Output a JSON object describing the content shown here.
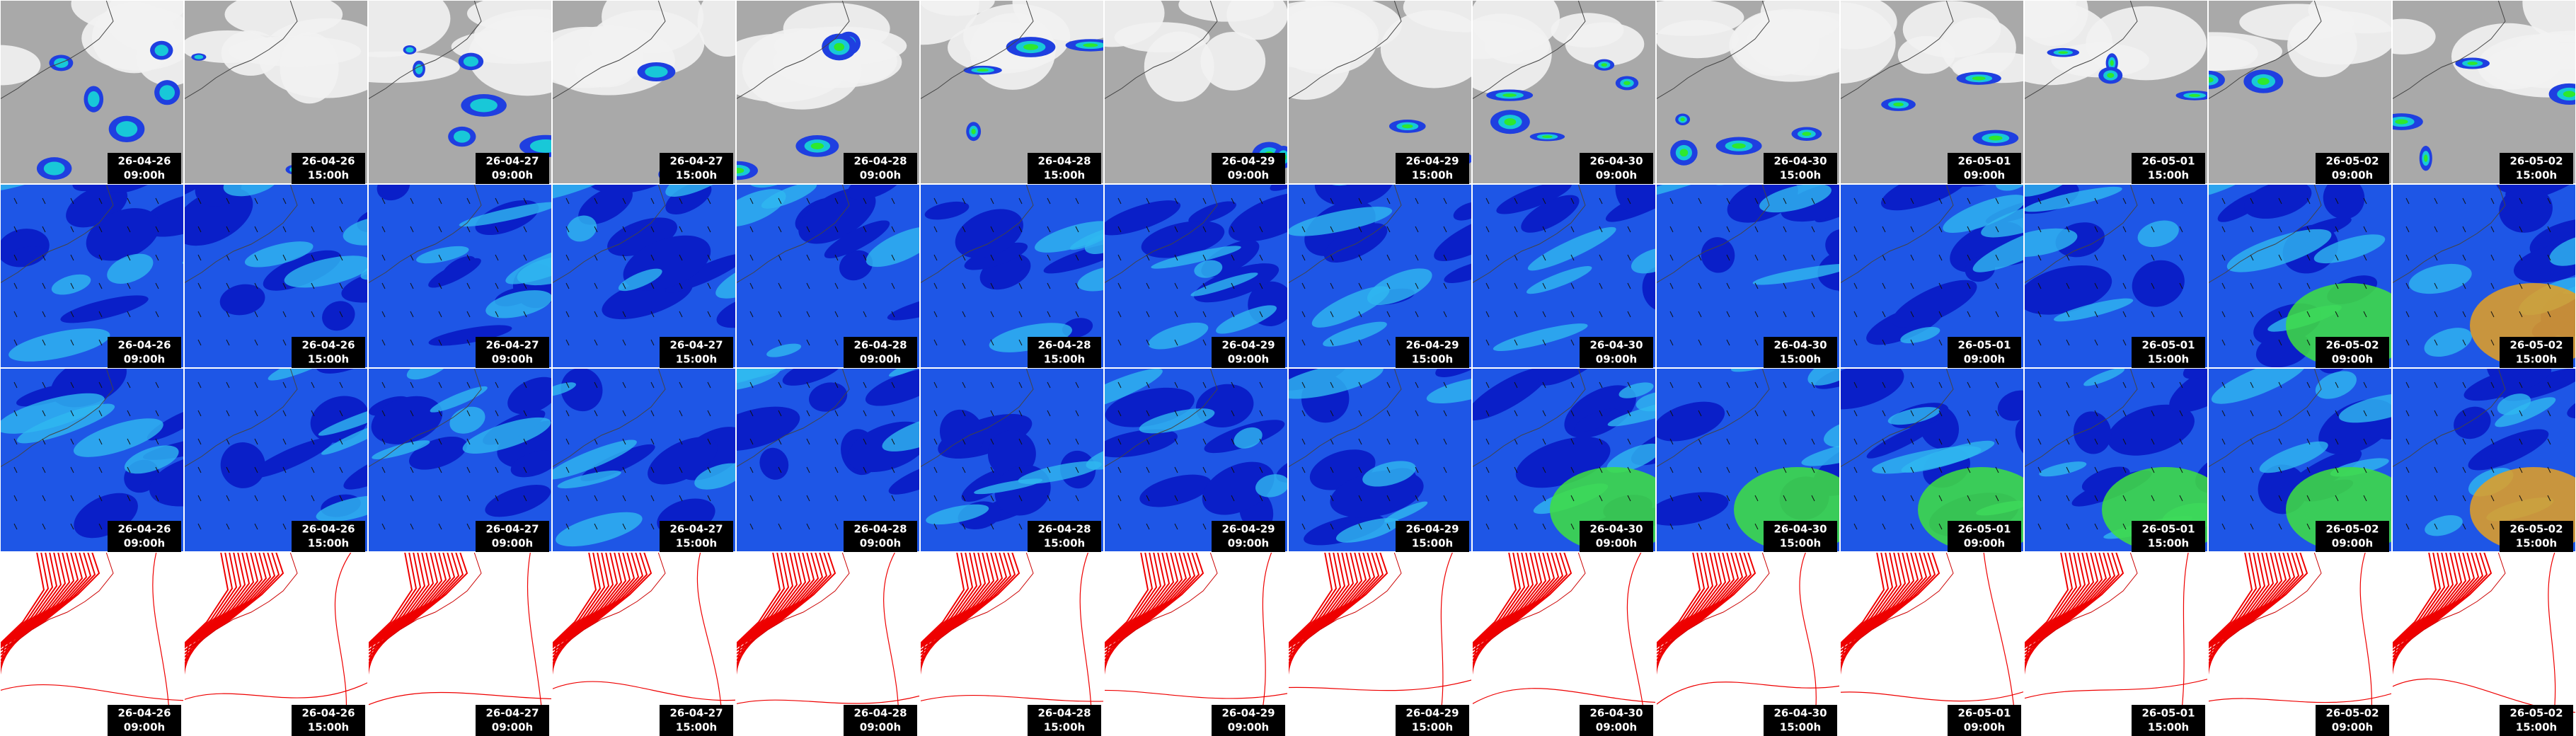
{
  "columns": [
    {
      "date": "26-04-26",
      "time": "09:00h"
    },
    {
      "date": "26-04-26",
      "time": "15:00h"
    },
    {
      "date": "26-04-27",
      "time": "09:00h"
    },
    {
      "date": "26-04-27",
      "time": "15:00h"
    },
    {
      "date": "26-04-28",
      "time": "09:00h"
    },
    {
      "date": "26-04-28",
      "time": "15:00h"
    },
    {
      "date": "26-04-29",
      "time": "09:00h"
    },
    {
      "date": "26-04-29",
      "time": "15:00h"
    },
    {
      "date": "26-04-30",
      "time": "09:00h"
    },
    {
      "date": "26-04-30",
      "time": "15:00h"
    },
    {
      "date": "26-05-01",
      "time": "09:00h"
    },
    {
      "date": "26-05-01",
      "time": "15:00h"
    },
    {
      "date": "26-05-02",
      "time": "09:00h"
    },
    {
      "date": "26-05-02",
      "time": "15:00h"
    }
  ]
}
